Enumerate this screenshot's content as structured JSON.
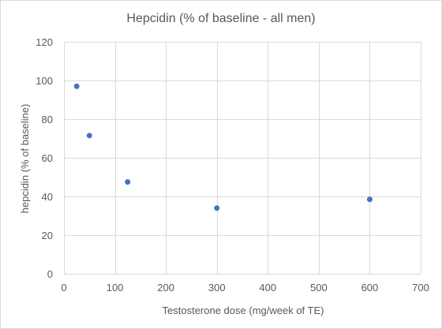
{
  "chart_data": {
    "type": "scatter",
    "title": "Hepcidin (% of baseline - all men)",
    "xlabel": "Testosterone dose (mg/week of TE)",
    "ylabel": "hepcidin (% of baseline)",
    "xlim": [
      0,
      700
    ],
    "ylim": [
      0,
      120
    ],
    "xticks": [
      0,
      100,
      200,
      300,
      400,
      500,
      600,
      700
    ],
    "yticks": [
      0,
      20,
      40,
      60,
      80,
      100,
      120
    ],
    "grid": true,
    "legend": "none",
    "series": [
      {
        "color": "#4472c4",
        "points": [
          {
            "x": 25,
            "y": 97
          },
          {
            "x": 50,
            "y": 71.5
          },
          {
            "x": 125,
            "y": 47.5
          },
          {
            "x": 300,
            "y": 34
          },
          {
            "x": 600,
            "y": 38.5
          }
        ]
      }
    ]
  }
}
